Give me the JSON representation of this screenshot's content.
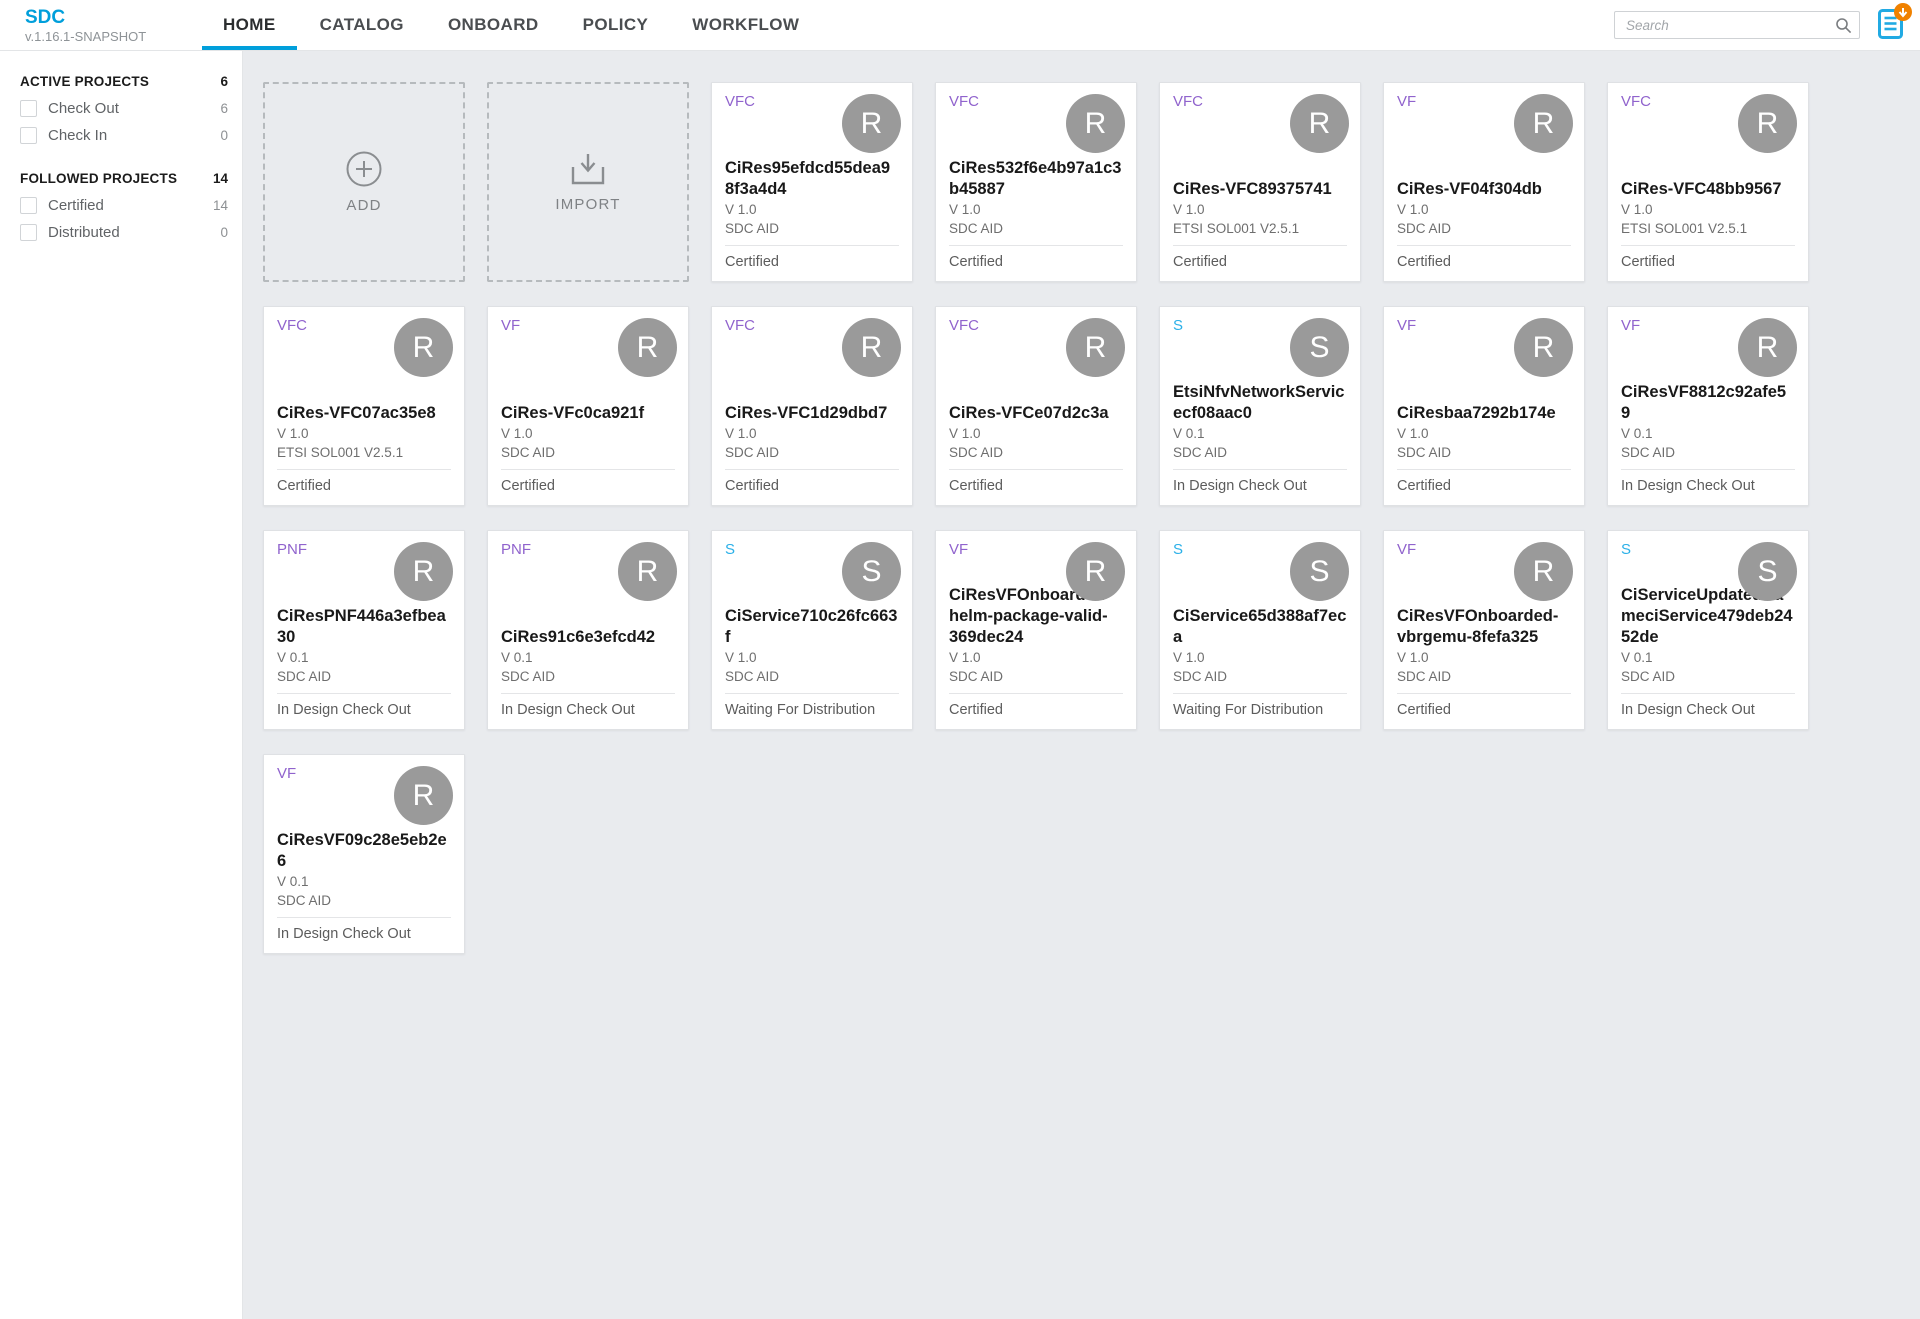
{
  "palette": {
    "brand_blue": "#009fdb",
    "resource_label_purple": "#9063cd",
    "service_label_blue": "#2bb0e8",
    "avatar_gray": "#9a9a9a",
    "badge_orange": "#f08100",
    "doc_icon_blue": "#21aae3"
  },
  "header": {
    "logo_title": "SDC",
    "logo_version": "v.1.16.1-SNAPSHOT",
    "nav_items": [
      {
        "label": "HOME",
        "active": true
      },
      {
        "label": "CATALOG",
        "active": false
      },
      {
        "label": "ONBOARD",
        "active": false
      },
      {
        "label": "POLICY",
        "active": false
      },
      {
        "label": "WORKFLOW",
        "active": false
      }
    ],
    "search_placeholder": "Search"
  },
  "sidebar": {
    "sections": [
      {
        "title": "ACTIVE PROJECTS",
        "count": "6",
        "items": [
          {
            "label": "Check Out",
            "count": "6",
            "checked": false
          },
          {
            "label": "Check In",
            "count": "0",
            "checked": false
          }
        ]
      },
      {
        "title": "FOLLOWED PROJECTS",
        "count": "14",
        "items": [
          {
            "label": "Certified",
            "count": "14",
            "checked": false
          },
          {
            "label": "Distributed",
            "count": "0",
            "checked": false
          }
        ]
      }
    ]
  },
  "workspace": {
    "action_tiles": [
      {
        "label": "ADD",
        "icon": "plus-circle-icon"
      },
      {
        "label": "IMPORT",
        "icon": "import-icon"
      }
    ],
    "cards": [
      {
        "type": "VFC",
        "kind": "resource",
        "avatar": "R",
        "name": "CiRes95efdcd55dea98f3a4d4",
        "version": "V 1.0",
        "catalog": "SDC AID",
        "status": "Certified"
      },
      {
        "type": "VFC",
        "kind": "resource",
        "avatar": "R",
        "name": "CiRes532f6e4b97a1c3b45887",
        "version": "V 1.0",
        "catalog": "SDC AID",
        "status": "Certified"
      },
      {
        "type": "VFC",
        "kind": "resource",
        "avatar": "R",
        "name": "CiRes-VFC89375741",
        "version": "V 1.0",
        "catalog": "ETSI SOL001 V2.5.1",
        "status": "Certified"
      },
      {
        "type": "VF",
        "kind": "resource",
        "avatar": "R",
        "name": "CiRes-VF04f304db",
        "version": "V 1.0",
        "catalog": "SDC AID",
        "status": "Certified"
      },
      {
        "type": "VFC",
        "kind": "resource",
        "avatar": "R",
        "name": "CiRes-VFC48bb9567",
        "version": "V 1.0",
        "catalog": "ETSI SOL001 V2.5.1",
        "status": "Certified"
      },
      {
        "type": "VFC",
        "kind": "resource",
        "avatar": "R",
        "name": "CiRes-VFC07ac35e8",
        "version": "V 1.0",
        "catalog": "ETSI SOL001 V2.5.1",
        "status": "Certified"
      },
      {
        "type": "VF",
        "kind": "resource",
        "avatar": "R",
        "name": "CiRes-VFc0ca921f",
        "version": "V 1.0",
        "catalog": "SDC AID",
        "status": "Certified"
      },
      {
        "type": "VFC",
        "kind": "resource",
        "avatar": "R",
        "name": "CiRes-VFC1d29dbd7",
        "version": "V 1.0",
        "catalog": "SDC AID",
        "status": "Certified"
      },
      {
        "type": "VFC",
        "kind": "resource",
        "avatar": "R",
        "name": "CiRes-VFCe07d2c3a",
        "version": "V 1.0",
        "catalog": "SDC AID",
        "status": "Certified"
      },
      {
        "type": "S",
        "kind": "service",
        "avatar": "S",
        "name": "EtsiNfvNetworkServicecf08aac0",
        "version": "V 0.1",
        "catalog": "SDC AID",
        "status": "In Design Check Out"
      },
      {
        "type": "VF",
        "kind": "resource",
        "avatar": "R",
        "name": "CiResbaa7292b174e",
        "version": "V 1.0",
        "catalog": "SDC AID",
        "status": "Certified"
      },
      {
        "type": "VF",
        "kind": "resource",
        "avatar": "R",
        "name": "CiResVF8812c92afe59",
        "version": "V 0.1",
        "catalog": "SDC AID",
        "status": "In Design Check Out"
      },
      {
        "type": "PNF",
        "kind": "resource",
        "avatar": "R",
        "name": "CiResPNF446a3efbea30",
        "version": "V 0.1",
        "catalog": "SDC AID",
        "status": "In Design Check Out"
      },
      {
        "type": "PNF",
        "kind": "resource",
        "avatar": "R",
        "name": "CiRes91c6e3efcd42",
        "version": "V 0.1",
        "catalog": "SDC AID",
        "status": "In Design Check Out"
      },
      {
        "type": "S",
        "kind": "service",
        "avatar": "S",
        "name": "CiService710c26fc663f",
        "version": "V 1.0",
        "catalog": "SDC AID",
        "status": "Waiting For Distribution"
      },
      {
        "type": "VF",
        "kind": "resource",
        "avatar": "R",
        "name": "CiResVFOnboarded-helm-package-valid-369dec24",
        "version": "V 1.0",
        "catalog": "SDC AID",
        "status": "Certified"
      },
      {
        "type": "S",
        "kind": "service",
        "avatar": "S",
        "name": "CiService65d388af7eca",
        "version": "V 1.0",
        "catalog": "SDC AID",
        "status": "Waiting For Distribution"
      },
      {
        "type": "VF",
        "kind": "resource",
        "avatar": "R",
        "name": "CiResVFOnboarded-vbrgemu-8fefa325",
        "version": "V 1.0",
        "catalog": "SDC AID",
        "status": "Certified"
      },
      {
        "type": "S",
        "kind": "service",
        "avatar": "S",
        "name": "CiServiceUpdatedNameciService479deb2452de",
        "version": "V 0.1",
        "catalog": "SDC AID",
        "status": "In Design Check Out"
      },
      {
        "type": "VF",
        "kind": "resource",
        "avatar": "R",
        "name": "CiResVF09c28e5eb2e6",
        "version": "V 0.1",
        "catalog": "SDC AID",
        "status": "In Design Check Out"
      }
    ]
  }
}
